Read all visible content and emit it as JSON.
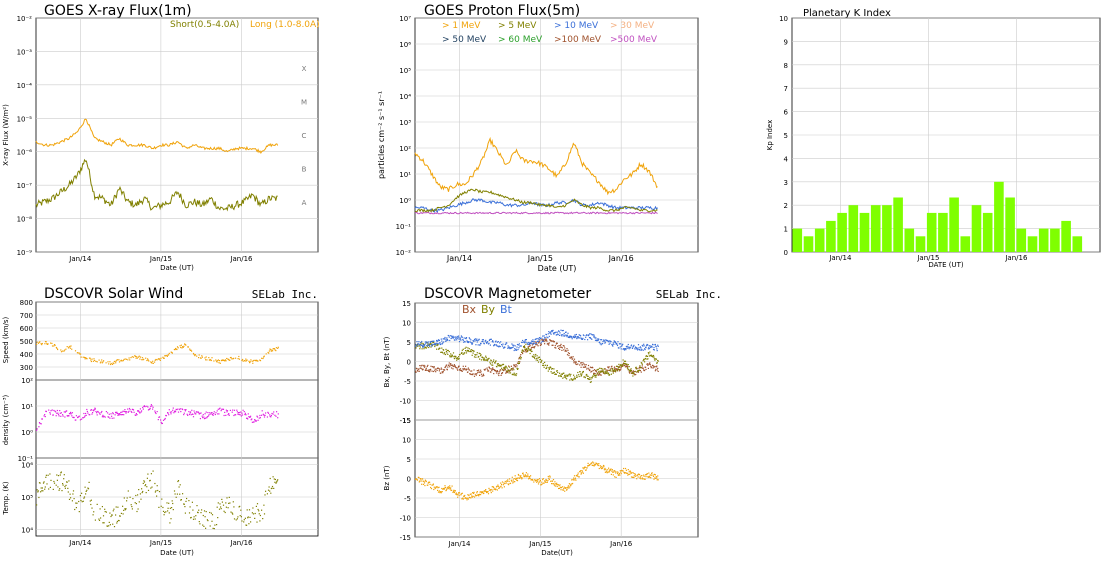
{
  "colors": {
    "short": "#808000",
    "long": "#f0a30a",
    "kp": "#7fff00",
    "proton1": "#f0a30a",
    "proton5": "#808000",
    "proton10": "#3a6fd8",
    "proton30": "#f4b183",
    "proton50": "#1f3f5f",
    "proton60": "#2ca02c",
    "proton100": "#a0522d",
    "proton500": "#c050c0",
    "speed": "#f0a30a",
    "density": "#e020e0",
    "temp": "#808000",
    "bx": "#a0522d",
    "by": "#808000",
    "bt": "#3a6fd8",
    "bz": "#f0a30a",
    "grid": "#cccccc"
  },
  "chart_data": [
    {
      "id": "xray",
      "type": "line",
      "title": "GOES X-ray Flux(1m)",
      "ylabel": "X-ray Flux (W/m²)",
      "xlabel": "Date (UT)",
      "x_ticks": [
        "Jan/14",
        "Jan/15",
        "Jan/16"
      ],
      "y_ticks": [
        "10⁻⁹",
        "10⁻⁸",
        "10⁻⁷",
        "10⁻⁶",
        "10⁻⁵",
        "10⁻⁴",
        "10⁻³",
        "10⁻²"
      ],
      "log_range": [
        -9,
        -2
      ],
      "class_labels": [
        "A",
        "B",
        "C",
        "M",
        "X"
      ],
      "x_range_days": [
        0,
        3.5
      ],
      "series": [
        {
          "name": "Short(0.5-4.0A)",
          "color_key": "short",
          "values_log": [
            -7.6,
            -7.5,
            -7.4,
            -7.2,
            -7.0,
            -6.7,
            -6.2,
            -7.3,
            -7.4,
            -7.6,
            -7.1,
            -7.5,
            -7.6,
            -7.4,
            -7.7,
            -7.6,
            -7.5,
            -7.2,
            -7.6,
            -7.5,
            -7.6,
            -7.4,
            -7.7,
            -7.7,
            -7.6,
            -7.5,
            -7.3,
            -7.6,
            -7.4,
            -7.4
          ]
        },
        {
          "name": "Long (1.0-8.0A)",
          "color_key": "long",
          "values_log": [
            -5.7,
            -5.8,
            -5.8,
            -5.7,
            -5.6,
            -5.4,
            -5.0,
            -5.6,
            -5.7,
            -5.8,
            -5.6,
            -5.8,
            -5.8,
            -5.8,
            -5.9,
            -5.8,
            -5.8,
            -5.7,
            -5.9,
            -5.8,
            -5.9,
            -5.9,
            -5.9,
            -6.0,
            -5.9,
            -5.9,
            -5.9,
            -6.0,
            -5.8,
            -5.8
          ]
        }
      ]
    },
    {
      "id": "proton",
      "type": "line",
      "title": "GOES Proton Flux(5m)",
      "ylabel": "particles cm⁻² s⁻¹ sr⁻¹",
      "xlabel": "Date (UT)",
      "x_ticks": [
        "Jan/14",
        "Jan/15",
        "Jan/16"
      ],
      "y_ticks": [
        "10⁻²",
        "10⁻¹",
        "10⁰",
        "10¹",
        "10²",
        "10³",
        "10⁴",
        "10⁵",
        "10⁶",
        "10⁷"
      ],
      "log_range": [
        -2,
        7
      ],
      "legend": [
        [
          {
            "label": "> 1 MeV",
            "color_key": "proton1"
          },
          {
            "label": "> 5 MeV",
            "color_key": "proton5"
          },
          {
            "label": "> 10 MeV",
            "color_key": "proton10"
          },
          {
            "label": "> 30 MeV",
            "color_key": "proton30"
          }
        ],
        [
          {
            "label": "> 50 MeV",
            "color_key": "proton50"
          },
          {
            "label": "> 60 MeV",
            "color_key": "proton60"
          },
          {
            "label": ">100 MeV",
            "color_key": "proton100"
          },
          {
            "label": ">500 MeV",
            "color_key": "proton500"
          }
        ]
      ],
      "series": [
        {
          "name": "> 1 MeV",
          "color_key": "proton1",
          "values_log": [
            1.8,
            1.5,
            1.0,
            0.5,
            0.4,
            0.6,
            0.6,
            1.0,
            1.5,
            2.3,
            1.8,
            1.3,
            1.9,
            1.5,
            1.5,
            1.4,
            1.2,
            0.9,
            1.4,
            2.2,
            1.4,
            1.0,
            0.7,
            0.3,
            0.4,
            0.8,
            1.0,
            1.4,
            1.1,
            0.5
          ]
        },
        {
          "name": "> 5 MeV",
          "color_key": "proton5",
          "values_log": [
            -0.4,
            -0.4,
            -0.4,
            -0.3,
            -0.2,
            0.1,
            0.3,
            0.4,
            0.3,
            0.3,
            0.2,
            0.1,
            0.0,
            -0.1,
            -0.1,
            -0.2,
            -0.2,
            -0.3,
            -0.2,
            0.0,
            -0.2,
            -0.3,
            -0.3,
            -0.4,
            -0.4,
            -0.3,
            -0.3,
            -0.4,
            -0.4,
            -0.4
          ]
        },
        {
          "name": "> 10 MeV",
          "color_key": "proton10",
          "values_log": [
            -0.3,
            -0.3,
            -0.4,
            -0.4,
            -0.3,
            -0.2,
            -0.1,
            0.0,
            0.0,
            -0.1,
            -0.1,
            -0.2,
            -0.2,
            -0.2,
            -0.1,
            -0.2,
            -0.2,
            -0.1,
            -0.1,
            0.0,
            -0.2,
            -0.2,
            -0.1,
            -0.2,
            -0.3,
            -0.3,
            -0.3,
            -0.3,
            -0.3,
            -0.3
          ]
        },
        {
          "name": ">500 MeV",
          "color_key": "proton500",
          "values_log": [
            -0.5,
            -0.5,
            -0.5,
            -0.5,
            -0.5,
            -0.5,
            -0.5,
            -0.5,
            -0.5,
            -0.5,
            -0.5,
            -0.5,
            -0.5,
            -0.5,
            -0.5,
            -0.5,
            -0.5,
            -0.5,
            -0.5,
            -0.5,
            -0.5,
            -0.5,
            -0.5,
            -0.5,
            -0.5,
            -0.5,
            -0.5,
            -0.5,
            -0.5,
            -0.5
          ]
        }
      ]
    },
    {
      "id": "kp",
      "type": "bar",
      "title": "Planetary K Index",
      "ylabel": "Kp Index",
      "xlabel": "DATE (UT)",
      "x_ticks": [
        "Jan/14",
        "Jan/15",
        "Jan/16"
      ],
      "ylim": [
        0,
        10
      ],
      "y_ticks": [
        "0",
        "1",
        "2",
        "3",
        "4",
        "5",
        "6",
        "7",
        "8",
        "9",
        "10"
      ],
      "values": [
        1.0,
        0.67,
        1.0,
        1.33,
        1.67,
        2.0,
        1.67,
        2.0,
        2.0,
        2.33,
        1.0,
        0.67,
        1.67,
        1.67,
        2.33,
        0.67,
        2.0,
        1.67,
        3.0,
        2.33,
        1.0,
        0.67,
        1.0,
        1.0,
        1.33,
        0.67
      ]
    },
    {
      "id": "solarwind",
      "type": "scatter",
      "title": "DSCOVR Solar Wind",
      "brand": "SELab Inc.",
      "xlabel": "Date (UT)",
      "x_ticks": [
        "Jan/14",
        "Jan/15",
        "Jan/16"
      ],
      "panels": [
        {
          "ylabel": "Speed (km/s)",
          "y_ticks": [
            "300",
            "400",
            "500",
            "600",
            "700",
            "800"
          ],
          "ylim": [
            200,
            800
          ],
          "color_key": "speed",
          "values": [
            480,
            485,
            470,
            420,
            460,
            400,
            360,
            350,
            340,
            330,
            350,
            360,
            380,
            360,
            340,
            360,
            400,
            450,
            470,
            390,
            370,
            360,
            340,
            360,
            380,
            350,
            340,
            360,
            430,
            440
          ]
        },
        {
          "ylabel": "density (cm⁻³)",
          "y_ticks": [
            "10⁻¹",
            "10⁰",
            "10¹",
            "10²"
          ],
          "log_range": [
            -1,
            2
          ],
          "color_key": "density",
          "values_log": [
            0.0,
            0.7,
            0.75,
            0.7,
            0.7,
            0.5,
            0.75,
            0.8,
            0.7,
            0.6,
            0.75,
            0.8,
            0.7,
            0.9,
            1.0,
            0.3,
            0.8,
            0.8,
            0.75,
            0.7,
            0.6,
            0.75,
            0.8,
            0.7,
            0.75,
            0.7,
            0.4,
            0.7,
            0.7,
            0.65
          ]
        },
        {
          "ylabel": "Temp. (K)",
          "y_ticks": [
            "10⁴",
            "10⁵",
            "10⁶"
          ],
          "log_range": [
            3.8,
            6.2
          ],
          "color_key": "temp",
          "values_log": [
            5.0,
            5.5,
            5.5,
            5.5,
            5.2,
            4.6,
            5.5,
            4.5,
            4.4,
            4.3,
            4.5,
            5.0,
            4.8,
            5.4,
            5.5,
            4.7,
            4.5,
            5.3,
            4.7,
            4.5,
            4.3,
            4.2,
            4.6,
            4.8,
            4.5,
            4.3,
            4.6,
            4.4,
            5.4,
            5.4
          ]
        }
      ]
    },
    {
      "id": "magnetometer",
      "type": "scatter",
      "title": "DSCOVR Magnetometer",
      "brand": "SELab Inc.",
      "xlabel": "Date(UT)",
      "x_ticks": [
        "Jan/14",
        "Jan/15",
        "Jan/16"
      ],
      "legend": [
        {
          "label": "Bx",
          "color_key": "bx"
        },
        {
          "label": "By",
          "color_key": "by"
        },
        {
          "label": "Bt",
          "color_key": "bt"
        }
      ],
      "panels": [
        {
          "ylabel": "Bx, By, Bt (nT)",
          "ylim": [
            -15,
            15
          ],
          "y_ticks": [
            "-15",
            "-10",
            "-5",
            "0",
            "5",
            "10",
            "15"
          ],
          "series": [
            {
              "name": "Bx",
              "color_key": "bx",
              "values": [
                -2,
                -1.5,
                -2,
                -2.5,
                -1,
                -1.5,
                -2,
                -3,
                -3,
                -2,
                -3,
                -2,
                -1.5,
                3,
                4,
                5,
                5,
                4,
                3,
                0,
                -1,
                -2,
                -3,
                -2,
                -2,
                -1,
                -3,
                -2,
                -1,
                -2
              ]
            },
            {
              "name": "By",
              "color_key": "by",
              "values": [
                4,
                4,
                4.5,
                3,
                2,
                1,
                3,
                2,
                1,
                0,
                -1,
                -2,
                -3,
                4,
                2,
                0,
                -2,
                -3,
                -4,
                -4,
                -3,
                -5,
                -2,
                -3,
                -2,
                0,
                -3,
                -1,
                2,
                0
              ]
            },
            {
              "name": "Bt",
              "color_key": "bt",
              "values": [
                4.5,
                4.5,
                4.5,
                5,
                6,
                6,
                5.5,
                5,
                5,
                5,
                4.5,
                4,
                3.5,
                5,
                5,
                5.5,
                7,
                7.5,
                7,
                6.5,
                6,
                6.5,
                5,
                5,
                4.5,
                3.5,
                4,
                3.5,
                4,
                3.5
              ]
            }
          ]
        },
        {
          "ylabel": "Bz (nT)",
          "ylim": [
            -15,
            15
          ],
          "y_ticks": [
            "-15",
            "-10",
            "-5",
            "0",
            "5",
            "10",
            "15"
          ],
          "series": [
            {
              "name": "Bz",
              "color_key": "bz",
              "values": [
                0,
                -1,
                -2,
                -3,
                -2,
                -4,
                -5,
                -4,
                -4,
                -3,
                -2,
                -1,
                0,
                1,
                0,
                -1,
                0,
                -2,
                -3,
                0,
                2,
                4,
                3,
                2,
                1,
                2,
                1,
                0,
                1,
                0
              ]
            }
          ]
        }
      ]
    }
  ]
}
